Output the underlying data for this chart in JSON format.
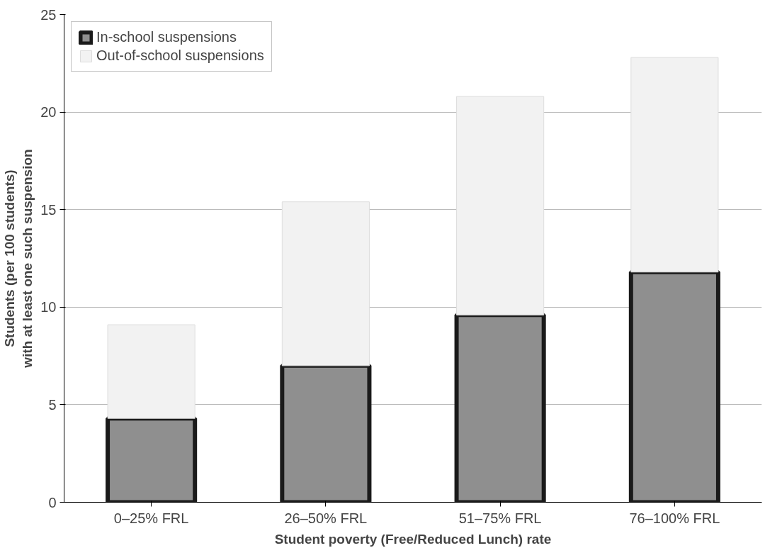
{
  "chart_data": {
    "type": "bar",
    "stacked": true,
    "xlabel": "Student poverty (Free/Reduced Lunch) rate",
    "ylabel": "Students (per 100 students)\nwith at least one such suspension",
    "categories": [
      "0–25% FRL",
      "26–50% FRL",
      "51–75% FRL",
      "76–100% FRL"
    ],
    "series": [
      {
        "name": "In-school suspensions",
        "color": "#8f8f8f",
        "values": [
          4.3,
          7.0,
          9.6,
          11.8
        ]
      },
      {
        "name": "Out-of-school suspensions",
        "color": "#f2f2f2",
        "values": [
          4.8,
          8.4,
          11.2,
          11.0
        ]
      }
    ],
    "ylim": [
      0,
      25
    ],
    "yticks": [
      0,
      5,
      10,
      15,
      20,
      25
    ],
    "grid": "y",
    "legend": "top left"
  }
}
